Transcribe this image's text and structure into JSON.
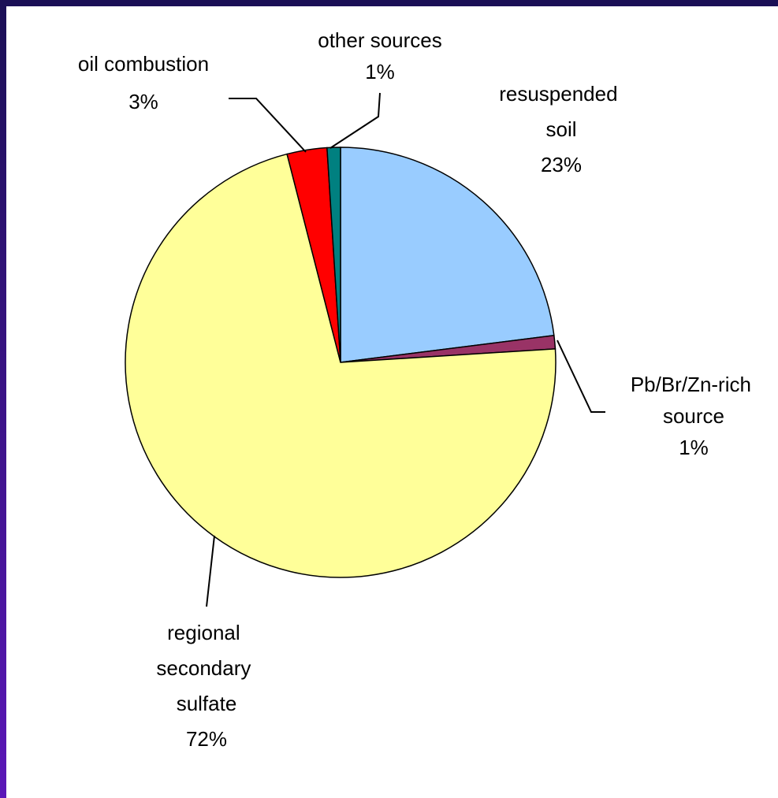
{
  "chart_data": {
    "type": "pie",
    "categories": [
      "resuspended soil",
      "Pb/Br/Zn-rich source",
      "regional secondary sulfate",
      "oil combustion",
      "other sources"
    ],
    "values": [
      23,
      1,
      72,
      3,
      1
    ],
    "value_labels": [
      "23%",
      "1%",
      "72%",
      "3%",
      "1%"
    ],
    "colors": [
      "#99ccff",
      "#993366",
      "#ffff99",
      "#ff0000",
      "#008080"
    ]
  }
}
